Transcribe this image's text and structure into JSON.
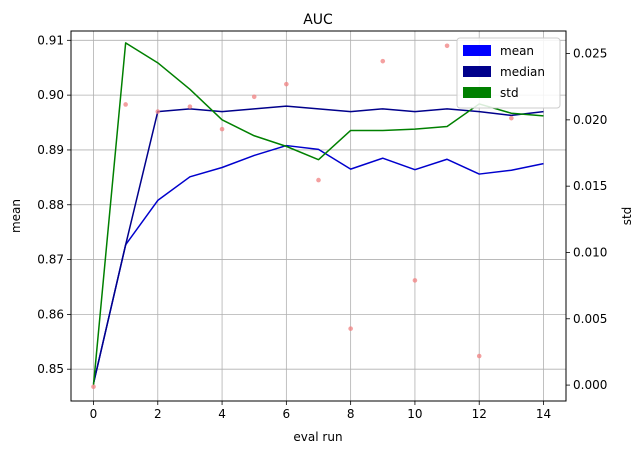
{
  "chart_data": {
    "type": "line",
    "title": "AUC",
    "xlabel": "eval run",
    "ylabel": "mean",
    "y2label": "std",
    "x": [
      0,
      1,
      2,
      3,
      4,
      5,
      6,
      7,
      8,
      9,
      10,
      11,
      12,
      13,
      14
    ],
    "xlim": [
      -0.7,
      14.7
    ],
    "ylim": [
      0.8442,
      0.9117
    ],
    "y2lim": [
      -0.0012,
      0.0267
    ],
    "xticks": [
      "0",
      "2",
      "4",
      "6",
      "8",
      "10",
      "12",
      "14"
    ],
    "yticks": [
      "0.85",
      "0.86",
      "0.87",
      "0.88",
      "0.89",
      "0.90",
      "0.91"
    ],
    "y2ticks": [
      "0.000",
      "0.005",
      "0.010",
      "0.015",
      "0.020",
      "0.025"
    ],
    "grid": true,
    "legend_position": "top-right",
    "legend": [
      {
        "label": "mean",
        "color": "#0000ff"
      },
      {
        "label": "median",
        "color": "#00008b"
      },
      {
        "label": "std",
        "color": "#008000"
      }
    ],
    "series": [
      {
        "name": "mean",
        "axis": "left",
        "color": "#0000cd",
        "values": [
          0.8474,
          0.8727,
          0.8808,
          0.8851,
          0.8868,
          0.889,
          0.8908,
          0.8901,
          0.8865,
          0.8885,
          0.8864,
          0.8883,
          0.8856,
          0.8863,
          0.8875
        ]
      },
      {
        "name": "median",
        "axis": "left",
        "color": "#00008b",
        "values": [
          0.8474,
          0.8727,
          0.897,
          0.8975,
          0.897,
          0.8975,
          0.898,
          0.8975,
          0.897,
          0.8975,
          0.897,
          0.8975,
          0.897,
          0.8963,
          0.897
        ]
      },
      {
        "name": "std",
        "axis": "right",
        "color": "#008000",
        "values": [
          0.0,
          0.0258,
          0.0243,
          0.0223,
          0.02,
          0.0188,
          0.018,
          0.017,
          0.0192,
          0.0192,
          0.0193,
          0.0195,
          0.0212,
          0.0205,
          0.0203
        ]
      },
      {
        "name": "",
        "axis": "left",
        "type": "scatter",
        "color": "#f08080",
        "values": [
          0.8468,
          0.8983,
          0.897,
          0.8979,
          0.8938,
          0.8997,
          0.902,
          0.8845,
          0.8574,
          0.9062,
          0.8662,
          0.909,
          0.8524,
          0.8958,
          null
        ]
      }
    ]
  }
}
